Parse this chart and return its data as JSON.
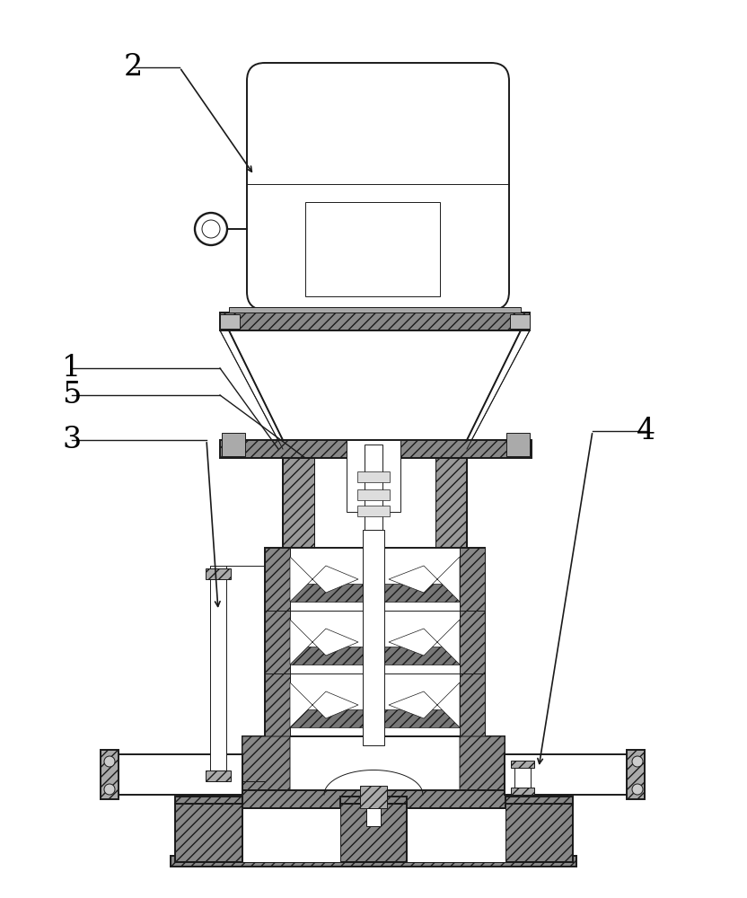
{
  "bg_color": "#ffffff",
  "line_color": "#1a1a1a",
  "dark_gray": "#404040",
  "mid_gray": "#888888",
  "light_gray": "#cccccc",
  "hatch_gray": "#666666",
  "label_color": "#000000",
  "label_fontsize": 24,
  "figsize": [
    8.32,
    10.0
  ],
  "dpi": 100,
  "lw_main": 1.4,
  "lw_thin": 0.7,
  "lw_thick": 2.0
}
